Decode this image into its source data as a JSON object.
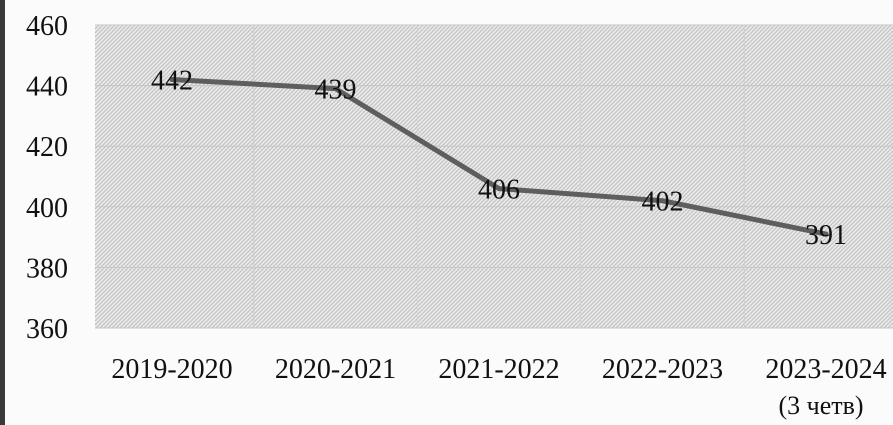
{
  "chart_data": {
    "type": "line",
    "categories": [
      "2019-2020",
      "2020-2021",
      "2021-2022",
      "2022-2023",
      "2023-2024"
    ],
    "category_sublabels": [
      "",
      "",
      "",
      "",
      "(3 четв)"
    ],
    "values": [
      442,
      439,
      406,
      402,
      391
    ],
    "data_labels": [
      "442",
      "439",
      "406",
      "402",
      "391"
    ],
    "y_ticks": [
      "460",
      "440",
      "420",
      "400",
      "380",
      "360"
    ],
    "y_tick_values": [
      460,
      440,
      420,
      400,
      380,
      360
    ],
    "ylim": [
      360,
      460
    ],
    "grid": true,
    "line_color": "#5e5e5e",
    "plot_background": "#dcdcdc"
  }
}
